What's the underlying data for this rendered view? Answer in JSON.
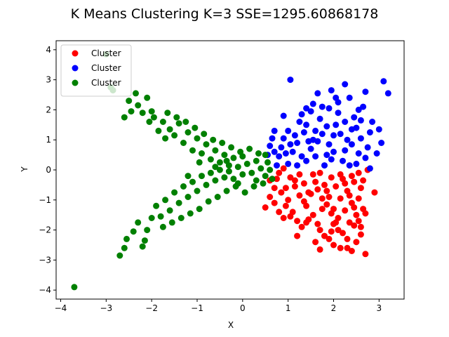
{
  "chart_data": {
    "type": "scatter",
    "title": "K Means Clustering K=3  SSE=1295.60868178",
    "xlabel": "X",
    "ylabel": "Y",
    "xlim": [
      -4.1,
      3.55
    ],
    "ylim": [
      -4.3,
      4.3
    ],
    "xticks": [
      -4,
      -3,
      -2,
      -1,
      0,
      1,
      2,
      3
    ],
    "yticks": [
      -4,
      -3,
      -2,
      -1,
      0,
      1,
      2,
      3,
      4
    ],
    "grid": false,
    "legend_position": "top-left",
    "series": [
      {
        "name": "Cluster",
        "color": "#ff0000",
        "points": [
          [
            1.8,
            -2.2
          ],
          [
            2.0,
            -1.8
          ],
          [
            2.3,
            -2.6
          ],
          [
            2.5,
            -2.4
          ],
          [
            2.7,
            -2.8
          ],
          [
            2.9,
            -0.75
          ],
          [
            2.65,
            -1.3
          ],
          [
            2.7,
            -1.45
          ],
          [
            2.45,
            -1.85
          ],
          [
            2.55,
            -1.7
          ],
          [
            1.2,
            -2.2
          ],
          [
            1.7,
            -2.65
          ],
          [
            2.15,
            -2.6
          ],
          [
            2.4,
            -2.7
          ],
          [
            2.0,
            -2.5
          ],
          [
            2.2,
            -2.1
          ],
          [
            1.95,
            -2.05
          ],
          [
            2.6,
            -1.9
          ],
          [
            2.4,
            -0.2
          ],
          [
            2.75,
            0.0
          ],
          [
            0.5,
            -1.25
          ],
          [
            0.6,
            -0.9
          ],
          [
            0.7,
            -0.6
          ],
          [
            0.75,
            -0.3
          ],
          [
            0.8,
            -0.1
          ],
          [
            0.9,
            0.05
          ],
          [
            0.6,
            -0.35
          ],
          [
            0.95,
            -0.6
          ],
          [
            1.0,
            -1.0
          ],
          [
            1.1,
            -1.4
          ],
          [
            1.2,
            -1.7
          ],
          [
            1.3,
            -1.9
          ],
          [
            1.4,
            -1.2
          ],
          [
            1.5,
            -0.8
          ],
          [
            1.6,
            -0.4
          ],
          [
            1.7,
            -0.1
          ],
          [
            1.8,
            -0.5
          ],
          [
            1.9,
            -0.9
          ],
          [
            2.0,
            -1.3
          ],
          [
            2.1,
            -1.6
          ],
          [
            2.2,
            -0.3
          ],
          [
            2.3,
            -0.7
          ],
          [
            2.4,
            -1.1
          ],
          [
            2.5,
            -1.5
          ],
          [
            2.6,
            -0.6
          ],
          [
            1.55,
            -1.5
          ],
          [
            1.65,
            -1.8
          ],
          [
            1.75,
            -1.3
          ],
          [
            1.85,
            -0.7
          ],
          [
            1.95,
            -0.25
          ],
          [
            2.05,
            -0.55
          ],
          [
            2.15,
            -0.95
          ],
          [
            2.25,
            -1.35
          ],
          [
            2.35,
            -1.75
          ],
          [
            2.45,
            -0.4
          ],
          [
            1.05,
            -0.25
          ],
          [
            1.15,
            -0.55
          ],
          [
            1.25,
            -0.85
          ],
          [
            1.35,
            -1.05
          ],
          [
            1.45,
            -1.65
          ],
          [
            0.85,
            -0.75
          ],
          [
            0.95,
            -1.2
          ],
          [
            1.05,
            -1.55
          ],
          [
            1.15,
            -0.35
          ],
          [
            1.25,
            -0.15
          ],
          [
            1.35,
            -0.45
          ],
          [
            1.45,
            -0.75
          ],
          [
            1.55,
            -0.15
          ],
          [
            1.65,
            -0.65
          ],
          [
            1.75,
            -0.95
          ],
          [
            1.85,
            -1.15
          ],
          [
            1.95,
            -1.45
          ],
          [
            2.05,
            -1.75
          ],
          [
            2.15,
            -0.15
          ],
          [
            2.25,
            -0.45
          ],
          [
            2.35,
            -0.85
          ],
          [
            2.45,
            -1.25
          ],
          [
            2.55,
            -0.1
          ],
          [
            2.55,
            -0.95
          ],
          [
            2.65,
            -0.35
          ],
          [
            0.7,
            -1.1
          ],
          [
            0.8,
            -1.4
          ],
          [
            0.9,
            -1.6
          ],
          [
            1.7,
            -2.0
          ],
          [
            1.9,
            -2.3
          ],
          [
            2.1,
            -2.0
          ],
          [
            2.3,
            -2.3
          ],
          [
            1.6,
            -2.4
          ],
          [
            1.4,
            -1.75
          ],
          [
            2.6,
            -2.15
          ]
        ]
      },
      {
        "name": "Cluster",
        "color": "#0000ff",
        "points": [
          [
            1.05,
            3.0
          ],
          [
            3.1,
            2.95
          ],
          [
            3.2,
            2.55
          ],
          [
            2.25,
            2.85
          ],
          [
            1.95,
            2.65
          ],
          [
            1.65,
            2.55
          ],
          [
            2.7,
            2.6
          ],
          [
            3.0,
            1.35
          ],
          [
            2.35,
            2.4
          ],
          [
            2.55,
            2.0
          ],
          [
            0.55,
            0.5
          ],
          [
            0.6,
            0.8
          ],
          [
            0.65,
            1.05
          ],
          [
            0.7,
            1.3
          ],
          [
            0.9,
            1.8
          ],
          [
            0.8,
            0.45
          ],
          [
            0.85,
            0.75
          ],
          [
            0.9,
            1.05
          ],
          [
            1.0,
            1.3
          ],
          [
            1.0,
            0.2
          ],
          [
            1.1,
            0.6
          ],
          [
            1.2,
            0.9
          ],
          [
            1.25,
            1.6
          ],
          [
            1.3,
            1.85
          ],
          [
            1.4,
            1.5
          ],
          [
            1.4,
            0.3
          ],
          [
            1.5,
            0.7
          ],
          [
            1.55,
            1.0
          ],
          [
            1.6,
            1.3
          ],
          [
            1.7,
            1.7
          ],
          [
            1.75,
            2.1
          ],
          [
            1.8,
            0.15
          ],
          [
            1.85,
            0.5
          ],
          [
            1.9,
            0.85
          ],
          [
            2.0,
            1.15
          ],
          [
            2.05,
            1.5
          ],
          [
            2.1,
            1.9
          ],
          [
            2.1,
            2.25
          ],
          [
            2.2,
            0.3
          ],
          [
            2.25,
            0.65
          ],
          [
            2.3,
            1.0
          ],
          [
            2.4,
            1.35
          ],
          [
            2.45,
            1.75
          ],
          [
            2.5,
            0.2
          ],
          [
            2.55,
            0.55
          ],
          [
            2.6,
            1.05
          ],
          [
            2.7,
            0.4
          ],
          [
            2.75,
            0.75
          ],
          [
            2.8,
            1.25
          ],
          [
            2.8,
            0.05
          ],
          [
            1.15,
            1.15
          ],
          [
            1.3,
            0.45
          ],
          [
            1.45,
            0.95
          ],
          [
            1.6,
            0.45
          ],
          [
            1.65,
            0.95
          ],
          [
            1.75,
            1.2
          ],
          [
            1.95,
            0.35
          ],
          [
            2.0,
            0.6
          ],
          [
            2.15,
            1.2
          ],
          [
            2.35,
            0.15
          ],
          [
            2.4,
            0.85
          ],
          [
            2.5,
            1.4
          ],
          [
            2.6,
            1.65
          ],
          [
            2.65,
            2.1
          ],
          [
            1.5,
            1.95
          ],
          [
            1.35,
            1.25
          ],
          [
            1.2,
            0.15
          ],
          [
            1.05,
            0.85
          ],
          [
            0.95,
            0.55
          ],
          [
            0.75,
            0.15
          ],
          [
            0.7,
            0.6
          ],
          [
            1.85,
            1.45
          ],
          [
            2.25,
            1.6
          ],
          [
            1.55,
            2.2
          ],
          [
            2.95,
            0.55
          ],
          [
            3.05,
            0.9
          ],
          [
            2.85,
            1.6
          ],
          [
            1.9,
            2.05
          ],
          [
            2.05,
            2.4
          ],
          [
            1.4,
            2.05
          ]
        ]
      },
      {
        "name": "Cluster",
        "color": "#008000",
        "points": [
          [
            -3.7,
            -3.9
          ],
          [
            -3.0,
            3.85
          ],
          [
            -2.9,
            2.75
          ],
          [
            -2.85,
            2.65
          ],
          [
            -2.7,
            -2.85
          ],
          [
            -2.6,
            -2.6
          ],
          [
            -2.55,
            -2.3
          ],
          [
            -2.4,
            -2.05
          ],
          [
            -2.3,
            -1.75
          ],
          [
            -2.2,
            -2.55
          ],
          [
            -2.5,
            2.3
          ],
          [
            -2.35,
            2.55
          ],
          [
            -2.6,
            1.75
          ],
          [
            -2.45,
            1.95
          ],
          [
            -2.3,
            2.15
          ],
          [
            -2.2,
            1.9
          ],
          [
            -2.1,
            2.4
          ],
          [
            -2.0,
            1.95
          ],
          [
            -2.1,
            -2.0
          ],
          [
            -2.0,
            -1.6
          ],
          [
            -2.05,
            1.6
          ],
          [
            -1.95,
            1.75
          ],
          [
            -1.85,
            1.3
          ],
          [
            -1.75,
            1.6
          ],
          [
            -1.7,
            1.05
          ],
          [
            -1.6,
            1.35
          ],
          [
            -1.5,
            1.15
          ],
          [
            -1.4,
            1.55
          ],
          [
            -1.3,
            0.9
          ],
          [
            -1.2,
            1.25
          ],
          [
            -1.1,
            0.65
          ],
          [
            -1.0,
            1.05
          ],
          [
            -0.9,
            0.55
          ],
          [
            -0.8,
            0.85
          ],
          [
            -0.7,
            0.35
          ],
          [
            -0.6,
            0.65
          ],
          [
            -0.5,
            0.25
          ],
          [
            -0.4,
            0.5
          ],
          [
            -0.3,
            0.15
          ],
          [
            -0.2,
            0.4
          ],
          [
            -1.9,
            -1.2
          ],
          [
            -1.8,
            -1.55
          ],
          [
            -1.7,
            -1.0
          ],
          [
            -1.6,
            -1.35
          ],
          [
            -1.5,
            -0.75
          ],
          [
            -1.4,
            -1.1
          ],
          [
            -1.3,
            -0.55
          ],
          [
            -1.2,
            -0.9
          ],
          [
            -1.1,
            -0.4
          ],
          [
            -1.0,
            -0.7
          ],
          [
            -0.9,
            -0.2
          ],
          [
            -0.8,
            -0.5
          ],
          [
            -0.7,
            -0.1
          ],
          [
            -0.6,
            -0.35
          ],
          [
            -0.5,
            0.0
          ],
          [
            -0.4,
            -0.25
          ],
          [
            -0.3,
            -0.05
          ],
          [
            -0.2,
            -0.3
          ],
          [
            -0.1,
            0.1
          ],
          [
            0.0,
            -0.15
          ],
          [
            0.1,
            0.2
          ],
          [
            0.2,
            -0.1
          ],
          [
            0.3,
            0.3
          ],
          [
            0.4,
            0.05
          ],
          [
            0.5,
            -0.2
          ],
          [
            0.55,
            0.25
          ],
          [
            0.45,
            -0.45
          ],
          [
            0.35,
            0.55
          ],
          [
            0.25,
            -0.55
          ],
          [
            0.15,
            0.7
          ],
          [
            0.05,
            -0.75
          ],
          [
            -0.05,
            0.6
          ],
          [
            -0.15,
            -0.55
          ],
          [
            -0.25,
            0.75
          ],
          [
            -0.35,
            -0.7
          ],
          [
            -0.45,
            0.9
          ],
          [
            -0.55,
            -0.9
          ],
          [
            -0.65,
            1.0
          ],
          [
            -0.75,
            -1.05
          ],
          [
            -0.85,
            1.2
          ],
          [
            -0.95,
            -1.3
          ],
          [
            -1.05,
            1.4
          ],
          [
            -1.15,
            -1.45
          ],
          [
            -1.25,
            1.6
          ],
          [
            -1.35,
            -1.6
          ],
          [
            -1.45,
            1.75
          ],
          [
            -1.55,
            -1.75
          ],
          [
            -1.65,
            1.9
          ],
          [
            -1.75,
            -1.9
          ],
          [
            -2.15,
            -2.35
          ],
          [
            0.6,
            0.0
          ],
          [
            0.65,
            -0.3
          ],
          [
            0.5,
            0.5
          ],
          [
            -0.1,
            -0.45
          ],
          [
            0.0,
            0.45
          ],
          [
            -0.35,
            0.3
          ],
          [
            0.3,
            -0.35
          ],
          [
            -0.6,
            0.1
          ],
          [
            -0.95,
            0.25
          ],
          [
            -1.2,
            -0.2
          ]
        ]
      }
    ]
  }
}
